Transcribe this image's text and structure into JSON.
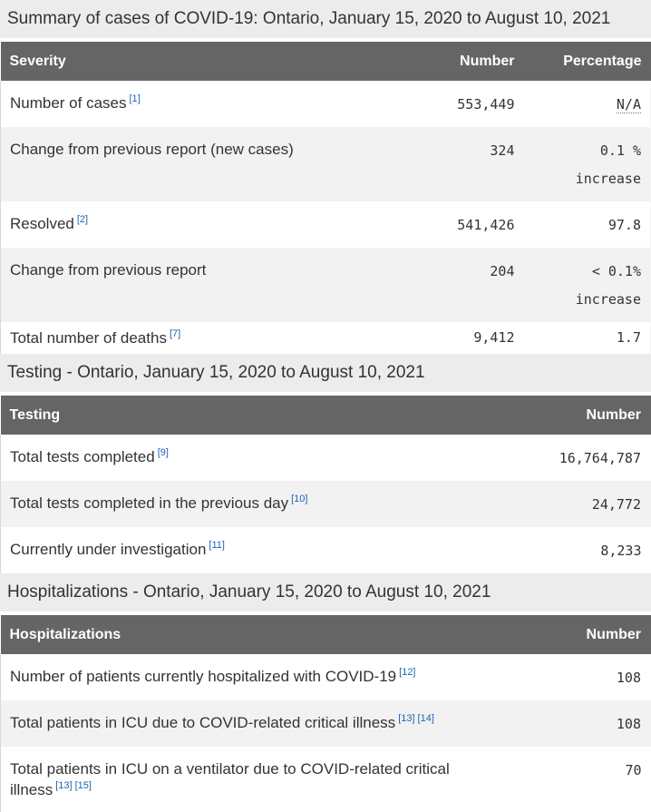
{
  "page_title": "Summary of cases of COVID-19: Ontario, January 15, 2020 to August 10, 2021",
  "colors": {
    "section_title_bg": "#ececec",
    "table_header_bg": "#656565",
    "table_header_text": "#ffffff",
    "row_alt_bg": "#f2f2f2",
    "body_text": "#333333",
    "footnote_link": "#1e62b4"
  },
  "sections": [
    {
      "title": "Summary of cases of COVID-19: Ontario, January 15, 2020 to August 10, 2021",
      "columns": [
        "Severity",
        "Number",
        "Percentage"
      ],
      "rows": [
        {
          "label": "Number of cases",
          "footnotes": [
            "[1]"
          ],
          "number": "553,449",
          "percentage": "N/A",
          "percentage_is_abbr": true
        },
        {
          "label": "Change from previous report (new cases)",
          "footnotes": [],
          "number": "324",
          "percentage": "0.1 %",
          "percentage_note": "increase"
        },
        {
          "label": "Resolved",
          "footnotes": [
            "[2]"
          ],
          "number": "541,426",
          "percentage": "97.8"
        },
        {
          "label": "Change from previous report",
          "footnotes": [],
          "number": "204",
          "percentage": "< 0.1%",
          "percentage_note": "increase"
        },
        {
          "label": "Total number of deaths",
          "footnotes": [
            "[7]"
          ],
          "number": "9,412",
          "percentage": "1.7"
        }
      ]
    },
    {
      "title": "Testing - Ontario, January 15, 2020 to August 10, 2021",
      "columns": [
        "Testing",
        "Number"
      ],
      "rows": [
        {
          "label": "Total tests completed",
          "footnotes": [
            "[9]"
          ],
          "number": "16,764,787"
        },
        {
          "label": "Total tests completed in the previous day",
          "footnotes": [
            "[10]"
          ],
          "number": "24,772"
        },
        {
          "label": "Currently under investigation",
          "footnotes": [
            "[11]"
          ],
          "number": "8,233"
        }
      ]
    },
    {
      "title": "Hospitalizations - Ontario, January 15, 2020 to August 10, 2021",
      "columns": [
        "Hospitalizations",
        "Number"
      ],
      "rows": [
        {
          "label": "Number of patients currently hospitalized with COVID-19",
          "footnotes": [
            "[12]"
          ],
          "number": "108"
        },
        {
          "label": "Total patients in ICU due to COVID-related critical illness",
          "footnotes": [
            "[13]",
            "[14]"
          ],
          "number": "108"
        },
        {
          "label": "Total patients in ICU on a ventilator due to COVID-related critical illness",
          "footnotes": [
            "[13]",
            "[15]"
          ],
          "number": "70"
        }
      ]
    }
  ]
}
